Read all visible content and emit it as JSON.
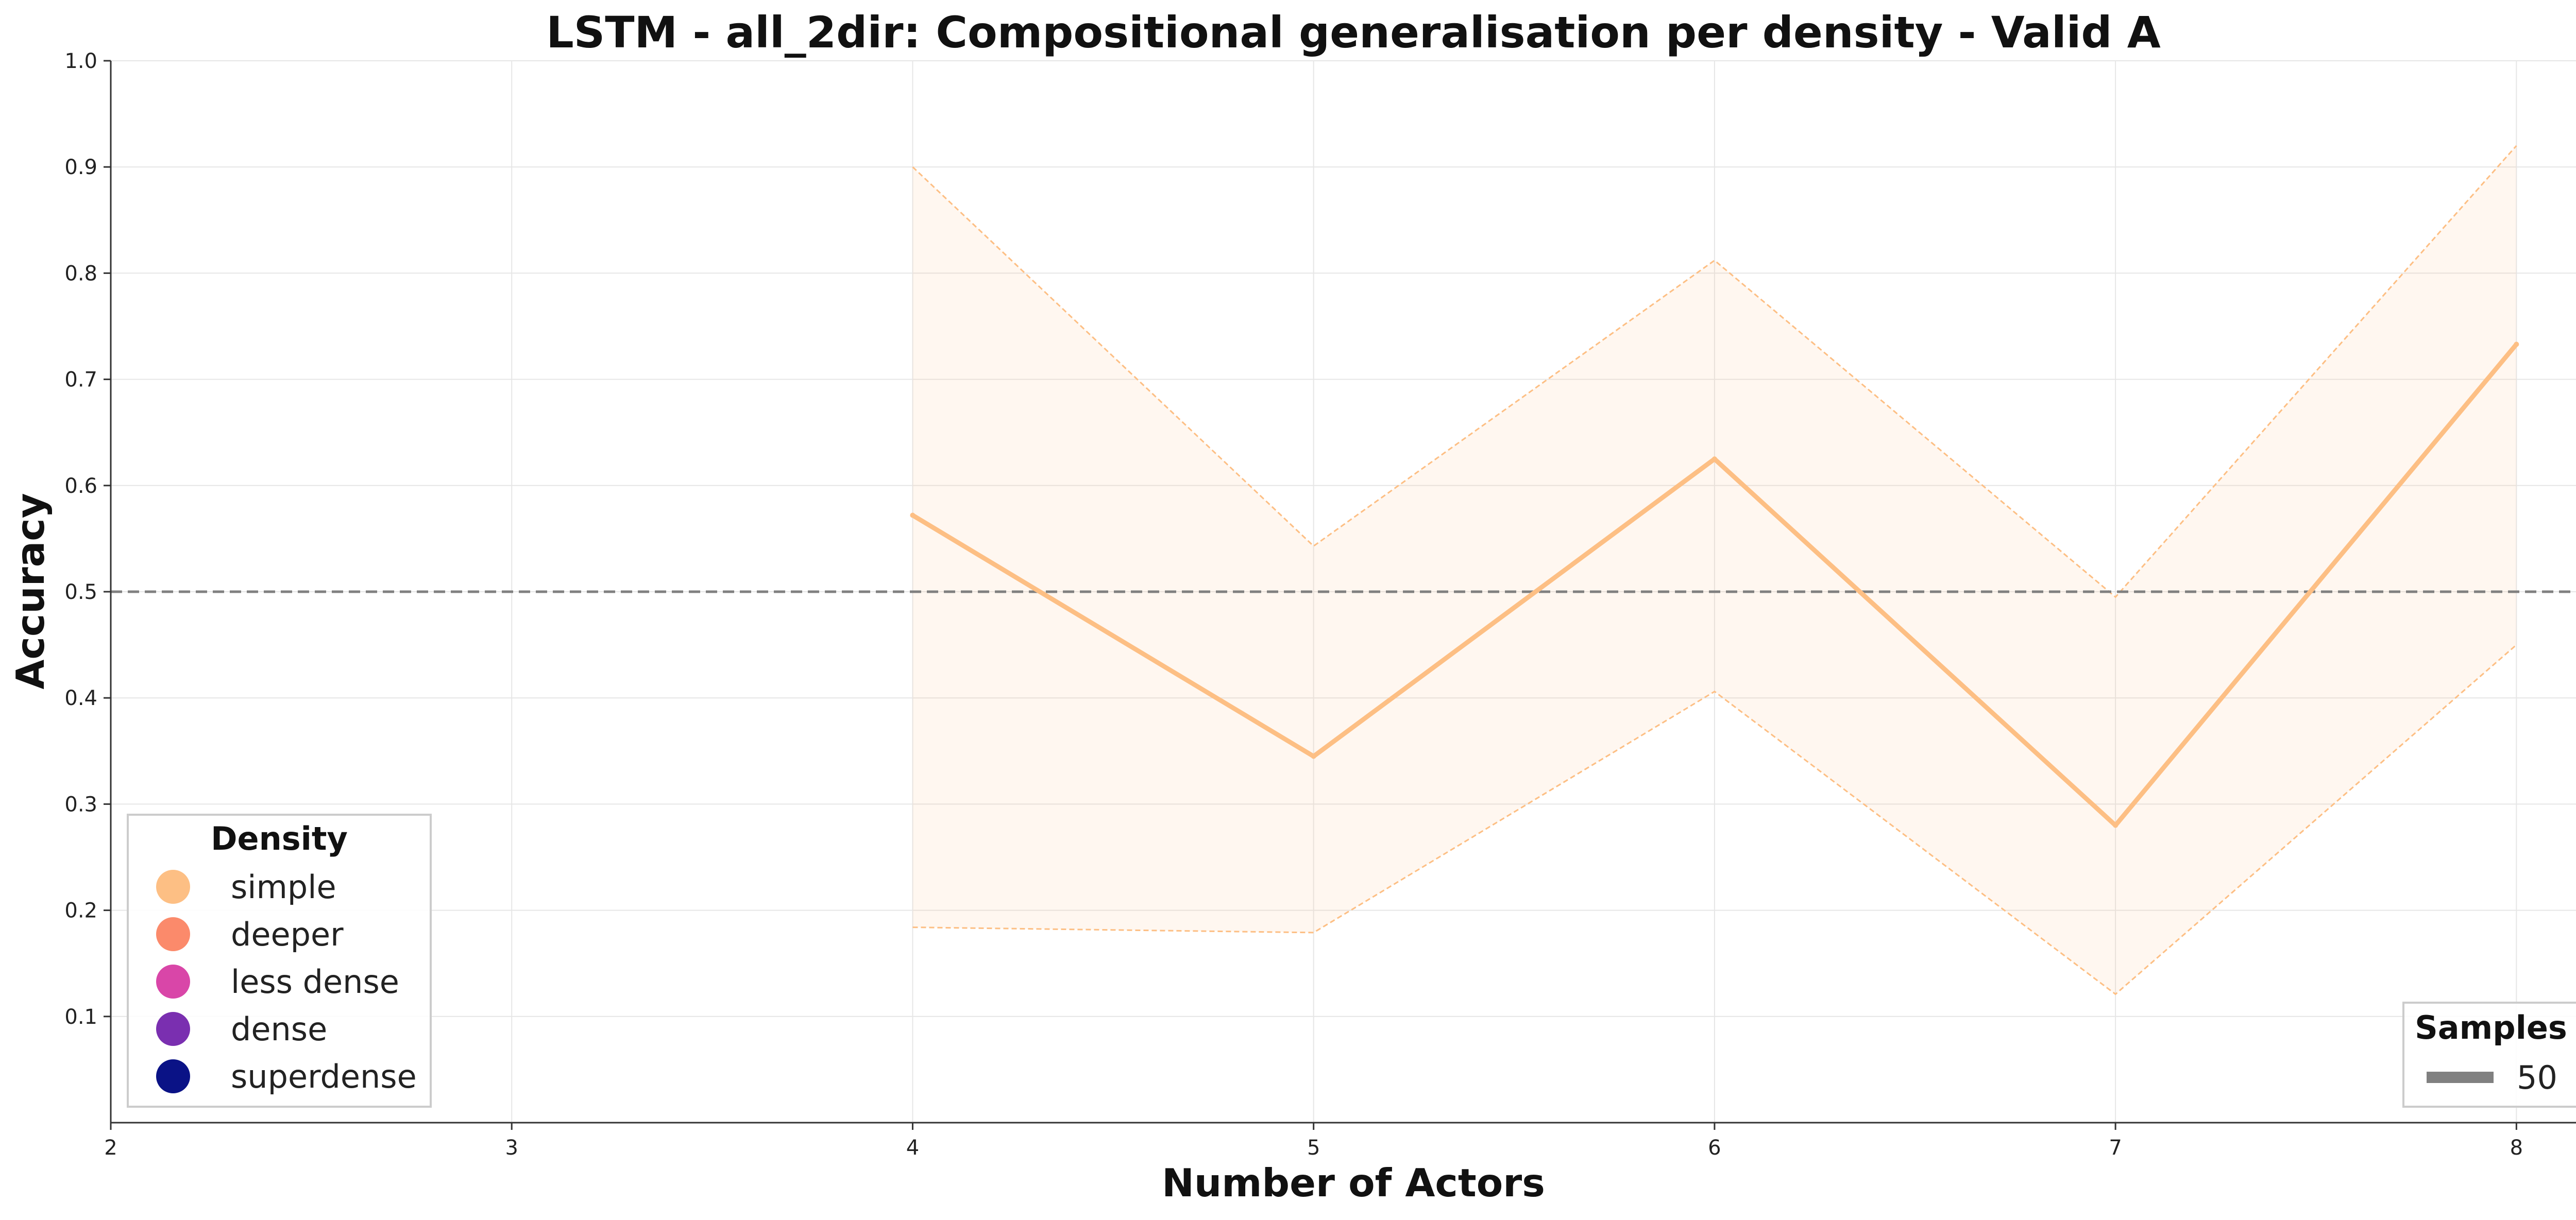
{
  "chart_data": {
    "type": "line",
    "title": "LSTM - all_2dir: Compositional generalisation per density - Valid A",
    "xlabel": "Number of Actors",
    "ylabel": "Accuracy",
    "xlim": [
      2,
      8.2
    ],
    "ylim": [
      0.0,
      1.0
    ],
    "x_ticks": [
      "2",
      "3",
      "4",
      "5",
      "6",
      "7",
      "8"
    ],
    "y_ticks": [
      "0.1",
      "0.2",
      "0.3",
      "0.4",
      "0.5",
      "0.6",
      "0.7",
      "0.8",
      "0.9",
      "1.0"
    ],
    "grid": true,
    "reference_line": {
      "y": 0.5,
      "style": "dashed",
      "color": "#808080"
    },
    "series": [
      {
        "name": "simple",
        "color": "#fdbf84",
        "x": [
          4,
          5,
          6,
          7,
          8
        ],
        "y": [
          0.572,
          0.345,
          0.625,
          0.28,
          0.733
        ],
        "upper": [
          0.9,
          0.543,
          0.812,
          0.495,
          0.92
        ],
        "lower": [
          0.184,
          0.179,
          0.406,
          0.121,
          0.45
        ]
      }
    ],
    "legend_density": {
      "title": "Density",
      "position": "lower-left",
      "items": [
        {
          "label": "simple",
          "color": "#fdbf84"
        },
        {
          "label": "deeper",
          "color": "#fb8a6b"
        },
        {
          "label": "less dense",
          "color": "#d946a8"
        },
        {
          "label": "dense",
          "color": "#7a2fb0"
        },
        {
          "label": "superdense",
          "color": "#0a1286"
        }
      ]
    },
    "legend_samples": {
      "title": "Samples",
      "position": "lower-right",
      "items": [
        {
          "label": "50",
          "color": "#808080"
        }
      ]
    }
  }
}
